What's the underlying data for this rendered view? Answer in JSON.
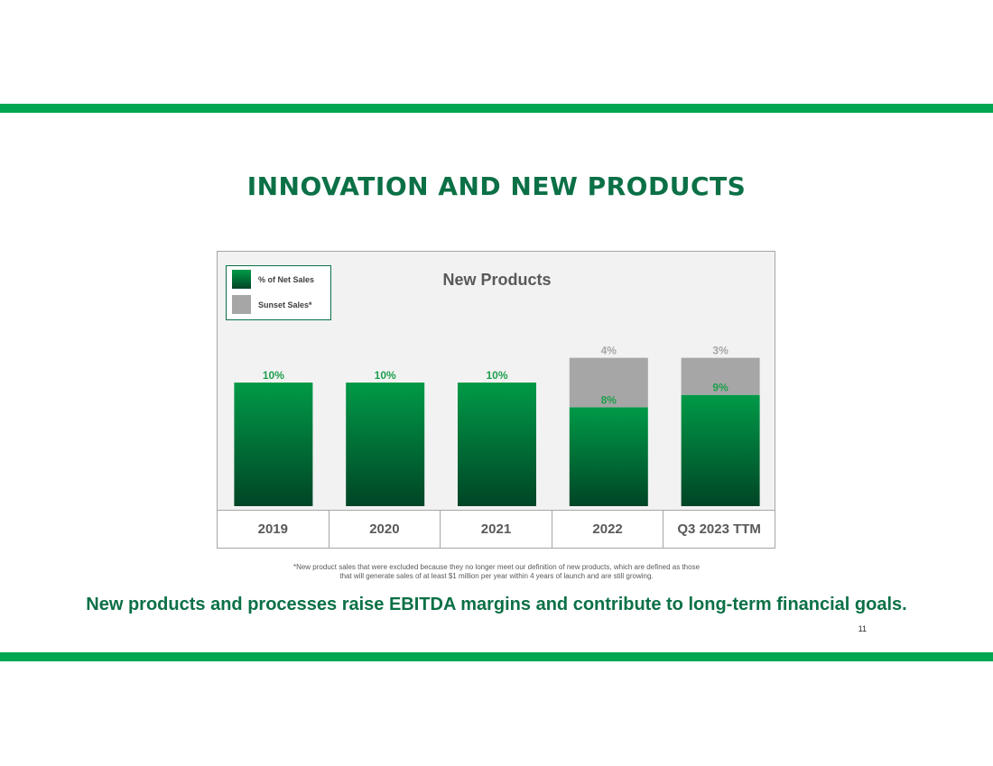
{
  "slide": {
    "title": "INNOVATION AND NEW PRODUCTS",
    "tagline": "New products and processes raise EBITDA margins and contribute to long-term financial goals.",
    "footnote_line1": "*New product sales that were excluded because they no longer meet our definition of new products, which are defined as those",
    "footnote_line2": "that will generate sales of at least $1 million per year within 4 years of launch and are still growing.",
    "page_number": "11"
  },
  "colors": {
    "brand_green": "#00a651",
    "title_green": "#0b7046",
    "bar_top": "#009a47",
    "bar_bottom": "#004526",
    "sunset_gray": "#a6a6a6",
    "label_green": "#1e9f4c",
    "label_gray": "#a6a6a6"
  },
  "chart_data": {
    "type": "bar",
    "stacked": true,
    "title": "New Products",
    "categories": [
      "2019",
      "2020",
      "2021",
      "2022",
      "Q3 2023 TTM"
    ],
    "series": [
      {
        "name": "% of Net Sales",
        "values": [
          10,
          10,
          10,
          8,
          9
        ],
        "labels": [
          "10%",
          "10%",
          "10%",
          "8%",
          "9%"
        ]
      },
      {
        "name": "Sunset Sales*",
        "values": [
          null,
          null,
          null,
          4,
          3
        ],
        "labels": [
          "",
          "",
          "",
          "4%",
          "3%"
        ]
      }
    ],
    "ylim": [
      0,
      14
    ],
    "legend": "top-left",
    "grid": false
  }
}
